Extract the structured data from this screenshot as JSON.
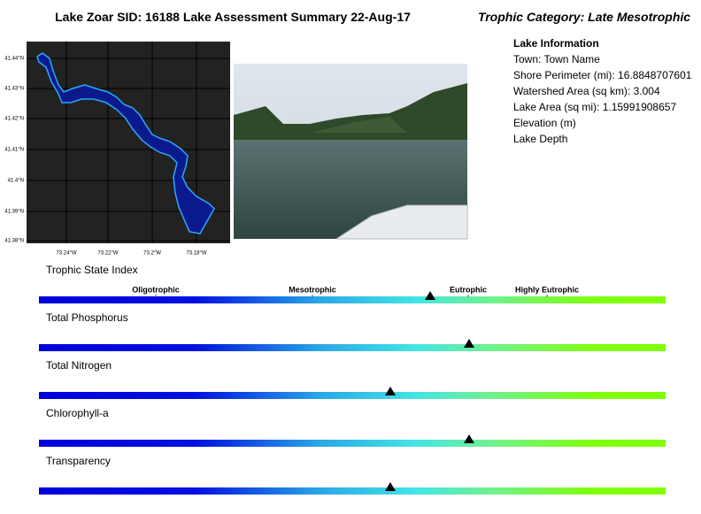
{
  "header": {
    "title": "Lake Zoar SID: 16188 Lake Assessment Summary 22-Aug-17",
    "trophic_category": "Trophic Category: Late Mesotrophic"
  },
  "lake_info": {
    "heading": "Lake Information",
    "lines": [
      "Town: Town Name",
      "Shore Perimeter (mi): 16.8848707601",
      "Watershed Area (sq km): 3.004",
      "Lake Area (sq mi): 1.15991908657",
      "Elevation (m)",
      "Lake Depth"
    ]
  },
  "map": {
    "lat_ticks": [
      "41.44°N",
      "41.43°N",
      "41.42°N",
      "41.41°N",
      "41.4°N",
      "41.39°N",
      "41.38°N"
    ],
    "lon_ticks": [
      "73.24°W",
      "73.22°W",
      "73.2°W",
      "73.18°W"
    ]
  },
  "trophic_scale": {
    "labels": [
      "Oligotrophic",
      "Mesotrophic",
      "Eutrophic",
      "Highly Eutrophic"
    ]
  },
  "indicators": [
    "Trophic State Index",
    "Total Phosphorus",
    "Total Nitrogen",
    "Chlorophyll-a",
    "Transparency"
  ]
}
